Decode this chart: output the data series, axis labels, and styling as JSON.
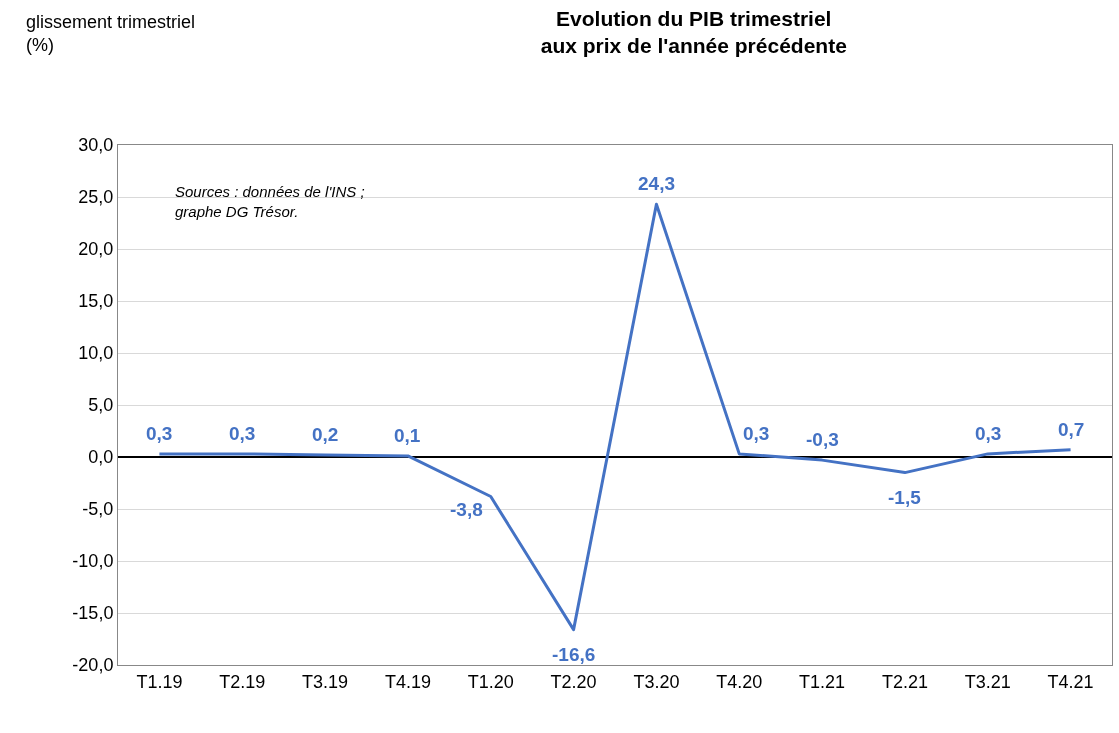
{
  "chart_data": {
    "type": "line",
    "title": "Evolution du PIB trimestriel\naux prix de l'année précédente",
    "ylabel": "glissement trimestriel\n(%)",
    "categories": [
      "T1.19",
      "T2.19",
      "T3.19",
      "T4.19",
      "T1.20",
      "T2.20",
      "T3.20",
      "T4.20",
      "T1.21",
      "T2.21",
      "T3.21",
      "T4.21"
    ],
    "series": [
      {
        "color": "#4472c4",
        "values": [
          0.3,
          0.3,
          0.2,
          0.1,
          -3.8,
          -16.6,
          24.3,
          0.3,
          -0.3,
          -1.5,
          0.3,
          0.7
        ],
        "value_labels": [
          "0,3",
          "0,3",
          "0,2",
          "0,1",
          "-3,8",
          "-16,6",
          "24,3",
          "0,3",
          "-0,3",
          "-1,5",
          "0,3",
          "0,7"
        ]
      }
    ],
    "ylim": [
      -20,
      30
    ],
    "yticks": [
      {
        "value": -20,
        "label": "-20,0"
      },
      {
        "value": -15,
        "label": "-15,0"
      },
      {
        "value": -10,
        "label": "-10,0"
      },
      {
        "value": -5,
        "label": "-5,0"
      },
      {
        "value": 0,
        "label": "0,0"
      },
      {
        "value": 5,
        "label": "5,0"
      },
      {
        "value": 10,
        "label": "10,0"
      },
      {
        "value": 15,
        "label": "15,0"
      },
      {
        "value": 20,
        "label": "20,0"
      },
      {
        "value": 25,
        "label": "25,0"
      },
      {
        "value": 30,
        "label": "30,0"
      }
    ],
    "grid": "y",
    "marker": "none",
    "line_style": "solid",
    "annotations": [
      "Sources : données de l'INS ;\ngraphe DG Trésor."
    ]
  }
}
